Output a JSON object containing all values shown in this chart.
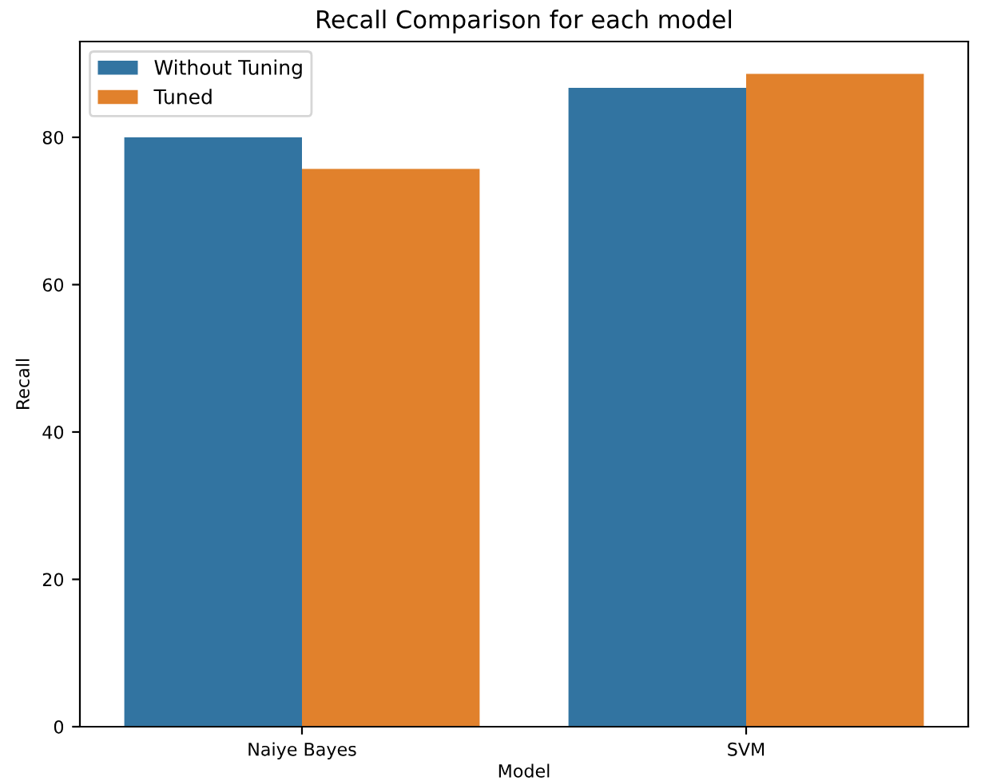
{
  "chart_data": {
    "type": "bar",
    "title": "Recall Comparison for each model",
    "xlabel": "Model",
    "ylabel": "Recall",
    "categories": [
      "Naiye Bayes",
      "SVM"
    ],
    "series": [
      {
        "name": "Without Tuning",
        "color": "#3274a1",
        "values": [
          80.0,
          86.7
        ]
      },
      {
        "name": "Tuned",
        "color": "#e1812c",
        "values": [
          75.7,
          88.6
        ]
      }
    ],
    "ylim": [
      0,
      93
    ],
    "yticks": [
      0,
      20,
      40,
      60,
      80
    ],
    "grid": false,
    "legend": "top left"
  }
}
